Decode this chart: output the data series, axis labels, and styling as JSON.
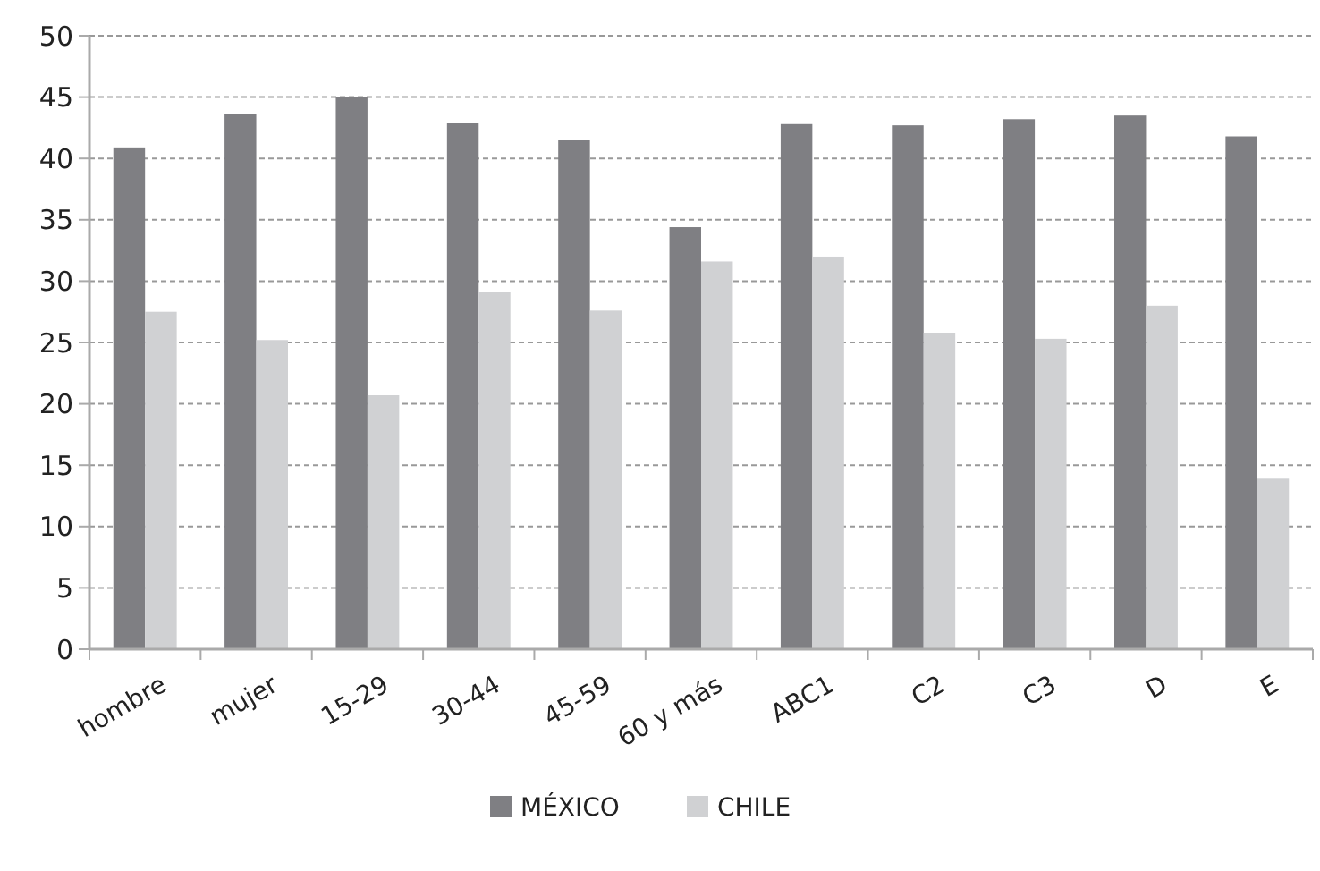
{
  "chart_data": {
    "type": "bar",
    "categories": [
      "hombre",
      "mujer",
      "15-29",
      "30-44",
      "45-59",
      "60 y más",
      "ABC1",
      "C2",
      "C3",
      "D",
      "E"
    ],
    "series": [
      {
        "name": "MÉXICO",
        "color": "#7f7f83",
        "values": [
          40.9,
          43.6,
          45.0,
          42.9,
          41.5,
          34.4,
          42.8,
          42.7,
          43.2,
          43.5,
          41.8
        ]
      },
      {
        "name": "CHILE",
        "color": "#d0d1d3",
        "values": [
          27.5,
          25.2,
          20.7,
          29.1,
          27.6,
          31.6,
          32.0,
          25.8,
          25.3,
          28.0,
          13.9
        ]
      }
    ],
    "ylim": [
      0,
      50
    ],
    "yticks": [
      0,
      5,
      10,
      15,
      20,
      25,
      30,
      35,
      40,
      45,
      50
    ],
    "grid": "y",
    "legend": "bottom"
  }
}
